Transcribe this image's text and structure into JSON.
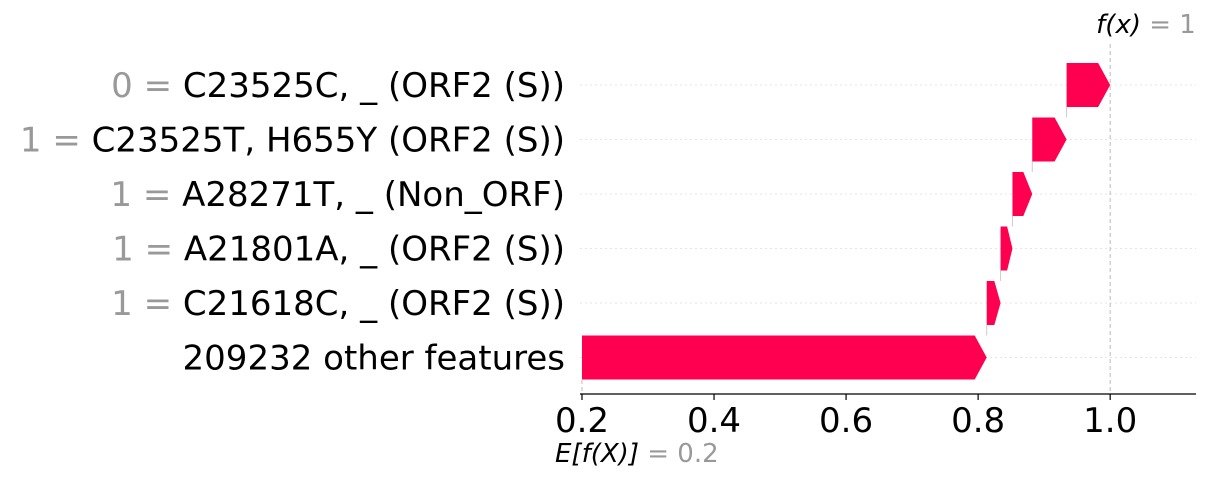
{
  "chart_data": {
    "type": "waterfall",
    "base_value": 0.2,
    "base_label": "E[f(X)]",
    "base_value_text": "= 0.2",
    "fx_value": 1,
    "fx_label": "f(x)",
    "fx_value_text": "= 1",
    "xlim": [
      0.197,
      1.13
    ],
    "x_ticks": [
      0.2,
      0.4,
      0.6,
      0.8,
      1.0
    ],
    "x_tick_labels": [
      "0.2",
      "0.4",
      "0.6",
      "0.8",
      "1.0"
    ],
    "color_positive": "#ff0051",
    "features": [
      {
        "value_text": "0 =",
        "name": "C23525C, _ (ORF2 (S))",
        "start": 0.934,
        "end": 1.0
      },
      {
        "value_text": "1 =",
        "name": "C23525T, H655Y (ORF2 (S))",
        "start": 0.882,
        "end": 0.934
      },
      {
        "value_text": "1 =",
        "name": "A28271T, _ (Non_ORF)",
        "start": 0.852,
        "end": 0.882
      },
      {
        "value_text": "1 =",
        "name": "A21801A, _ (ORF2 (S))",
        "start": 0.834,
        "end": 0.852
      },
      {
        "value_text": "1 =",
        "name": "C21618C, _ (ORF2 (S))",
        "start": 0.813,
        "end": 0.834
      },
      {
        "value_text": "",
        "name": "209232 other features",
        "start": 0.2,
        "end": 0.813
      }
    ]
  }
}
